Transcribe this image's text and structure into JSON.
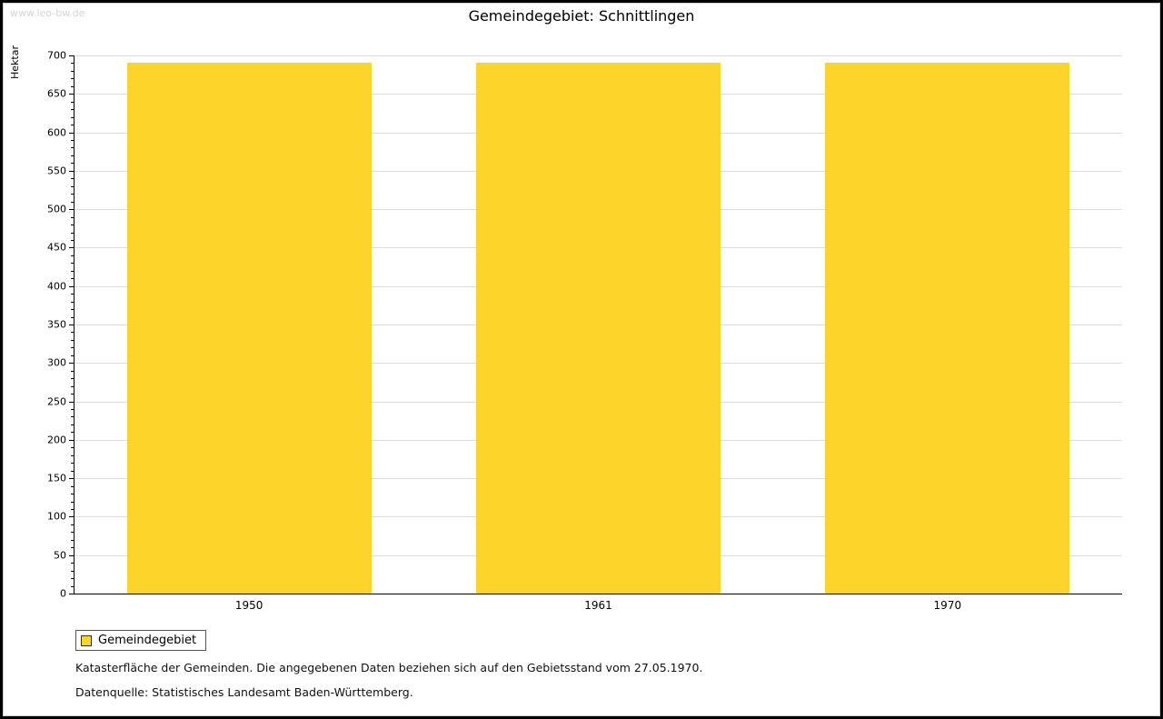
{
  "watermark": "www.leo-bw.de",
  "title": "Gemeindegebiet: Schnittlingen",
  "chart_data": {
    "type": "bar",
    "categories": [
      "1950",
      "1961",
      "1970"
    ],
    "series": [
      {
        "name": "Gemeindegebiet",
        "values": [
          690,
          690,
          690
        ]
      }
    ],
    "title": "Gemeindegebiet: Schnittlingen",
    "xlabel": "",
    "ylabel": "Hektar",
    "ylim": [
      0,
      700
    ],
    "ytick_step": 50,
    "minor_tick_step": 10,
    "bar_color": "#FCD42A",
    "grid": true,
    "legend_position": "bottom-left"
  },
  "legend": {
    "items": [
      {
        "label": "Gemeindegebiet",
        "color": "#FCD42A"
      }
    ]
  },
  "footnotes": [
    "Katasterfläche der Gemeinden. Die angegebenen Daten beziehen sich auf den Gebietsstand vom 27.05.1970.",
    "Datenquelle: Statistisches Landesamt Baden-Württemberg."
  ]
}
